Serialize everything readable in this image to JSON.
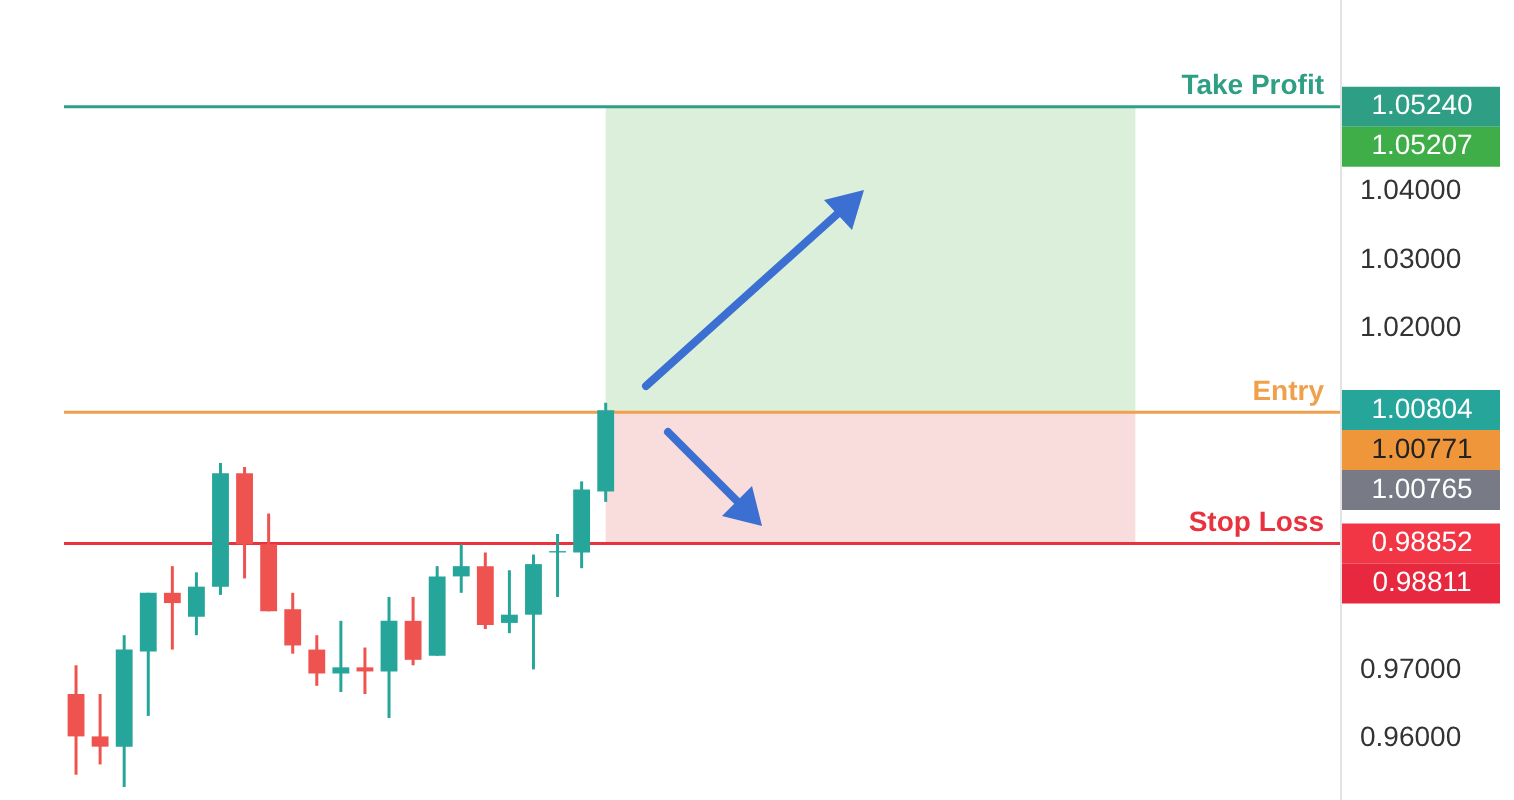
{
  "chart_data": {
    "type": "candlestick",
    "categories": [
      null,
      null,
      null,
      null,
      null,
      null,
      null,
      null,
      null,
      null,
      null,
      null,
      null,
      null,
      null,
      null,
      null,
      null,
      null,
      null,
      null,
      null,
      null,
      null,
      null,
      null,
      null,
      null,
      null,
      null,
      null,
      null,
      null,
      null,
      null,
      null,
      null,
      null,
      null,
      null,
      null,
      null,
      null,
      null,
      null,
      null,
      null,
      null,
      null,
      null,
      null,
      null,
      null
    ],
    "ohlc": [
      [
        0.9665,
        0.9707,
        0.9547,
        0.9603
      ],
      [
        0.9603,
        0.9665,
        0.9562,
        0.9588
      ],
      [
        0.9588,
        0.9751,
        0.9529,
        0.973
      ],
      [
        0.9727,
        0.9813,
        0.9633,
        0.9813
      ],
      [
        0.9813,
        0.9852,
        0.973,
        0.9798
      ],
      [
        0.9778,
        0.9843,
        0.9751,
        0.9822
      ],
      [
        0.9822,
        1.0003,
        0.981,
        0.9988
      ],
      [
        0.9988,
        0.9997,
        0.9834,
        0.9884
      ],
      [
        0.9884,
        0.9929,
        0.9786,
        0.9786
      ],
      [
        0.9789,
        0.9813,
        0.9724,
        0.9736
      ],
      [
        0.973,
        0.9751,
        0.9677,
        0.9695
      ],
      [
        0.9695,
        0.9772,
        0.9668,
        0.9704
      ],
      [
        0.9704,
        0.9733,
        0.9665,
        0.9698
      ],
      [
        0.9698,
        0.9807,
        0.963,
        0.9772
      ],
      [
        0.9772,
        0.9807,
        0.9707,
        0.9715
      ],
      [
        0.9721,
        0.9852,
        0.9721,
        0.9837
      ],
      [
        0.9837,
        0.9884,
        0.9813,
        0.9852
      ],
      [
        0.9852,
        0.9872,
        0.976,
        0.9766
      ],
      [
        0.9769,
        0.9846,
        0.9754,
        0.9781
      ],
      [
        0.9781,
        0.9869,
        0.9701,
        0.9855
      ],
      [
        0.9872,
        0.9899,
        0.9807,
        0.9874
      ],
      [
        0.9872,
        0.9976,
        0.9849,
        0.9964
      ],
      [
        0.9961,
        1.0091,
        0.9946,
        1.008
      ],
      null,
      null,
      null,
      null,
      null,
      null,
      null,
      null,
      null,
      null,
      null,
      null,
      null,
      null,
      null,
      null,
      null,
      null,
      null,
      null,
      null,
      null,
      null,
      null,
      null,
      null,
      null,
      null,
      null,
      null
    ],
    "ylim": [
      0.951,
      1.068
    ],
    "yticks": [
      {
        "value": 0.96,
        "label": "0.96000"
      },
      {
        "value": 0.97,
        "label": "0.97000"
      },
      {
        "value": 1.02,
        "label": "1.02000"
      },
      {
        "value": 1.03,
        "label": "1.03000"
      },
      {
        "value": 1.04,
        "label": "1.04000"
      }
    ],
    "grid": false,
    "ref_lines": [
      {
        "axis": "y",
        "value": 1.0524,
        "label": "Take Profit",
        "color": "#2e9e84"
      },
      {
        "axis": "y",
        "value": 1.00771,
        "label": "Entry",
        "color": "#f0a04b"
      },
      {
        "axis": "y",
        "value": 0.98852,
        "label": "Stop Loss",
        "color": "#e8333f"
      }
    ],
    "bands": [
      {
        "axis": "y",
        "from": 1.00771,
        "to": 1.0524,
        "color": "#dcefda"
      },
      {
        "axis": "y",
        "from": 0.98852,
        "to": 1.00771,
        "color": "#f9dcdc"
      }
    ],
    "annotations": [
      "1.05240",
      "1.05207",
      "1.00804",
      "1.00771",
      "1.00765",
      "0.98852",
      "0.98811"
    ]
  }
}
